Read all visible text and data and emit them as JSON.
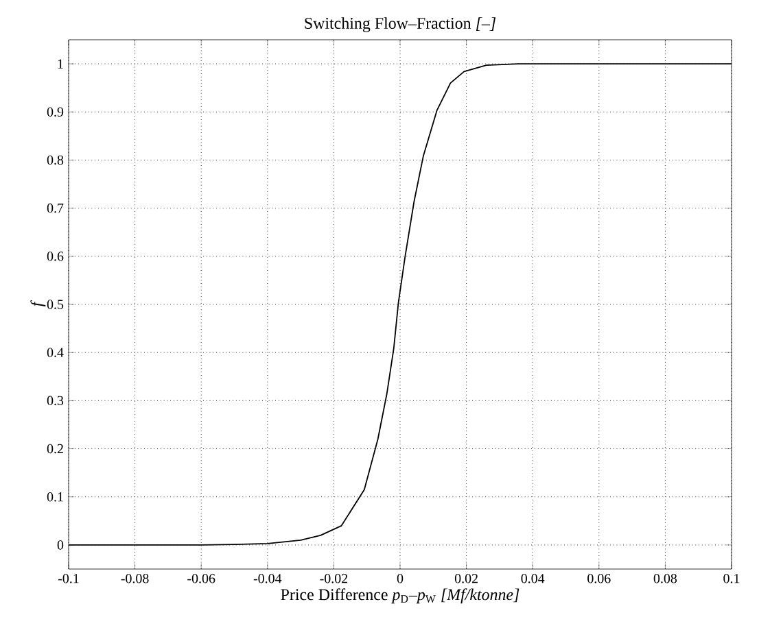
{
  "chart_data": {
    "type": "line",
    "title": "Switching Flow–Fraction *[–]*",
    "xlabel": "Price Difference *p*$_{D}$–*p*$_{W}$ *[Mf/ktonne]*",
    "ylabel": "f",
    "series": [
      {
        "color": "#000000",
        "x": [
          -0.1,
          -0.08,
          -0.06,
          -0.05,
          -0.04,
          -0.03,
          -0.024,
          -0.0177,
          -0.0108,
          -0.0067,
          -0.004,
          -0.0019,
          -0.0005,
          0.0015,
          0.0042,
          0.007,
          0.0111,
          0.0152,
          0.0193,
          0.026,
          0.0356,
          0.05,
          0.1
        ],
        "values": [
          0,
          0,
          0,
          0.001,
          0.003,
          0.01,
          0.02,
          0.04,
          0.115,
          0.22,
          0.314,
          0.409,
          0.504,
          0.599,
          0.713,
          0.808,
          0.903,
          0.96,
          0.984,
          0.997,
          1.0,
          1.0,
          1.0
        ]
      }
    ],
    "xlim": [
      -0.1,
      0.1
    ],
    "ylim": [
      -0.05,
      1.05
    ],
    "xticks": [
      -0.1,
      -0.08,
      -0.06,
      -0.04,
      -0.02,
      0,
      0.02,
      0.04,
      0.06,
      0.08,
      0.1
    ],
    "yticks": [
      0,
      0.1,
      0.2,
      0.3,
      0.4,
      0.5,
      0.6,
      0.7,
      0.8,
      0.9,
      1
    ],
    "grid": true,
    "line_style": "solid",
    "marker": "none"
  }
}
